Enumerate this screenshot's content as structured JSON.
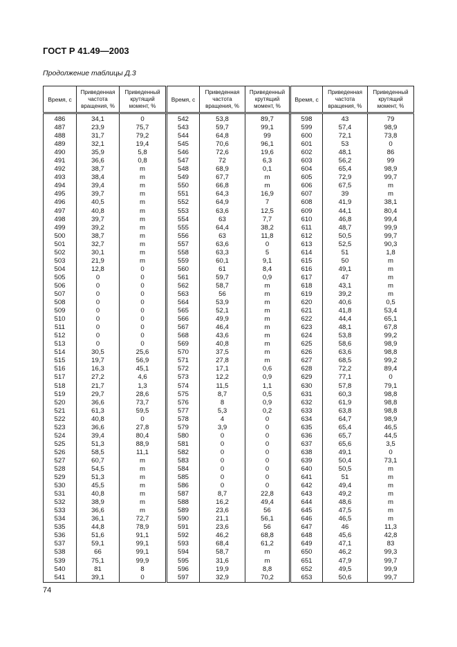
{
  "header": {
    "title": "ГОСТ Р 41.49—2003"
  },
  "caption": "Продолжение таблицы Д.3",
  "page_number": "74",
  "table": {
    "columns": [
      "Время, с",
      "Приведенная частота вращения, %",
      "Приведенный крутящий момент, %"
    ],
    "groups": [
      {
        "time": [
          "486",
          "487",
          "488",
          "489",
          "490",
          "491",
          "492",
          "493",
          "494",
          "495",
          "496",
          "497",
          "498",
          "499",
          "500",
          "501",
          "502",
          "503",
          "504",
          "505",
          "506",
          "507",
          "508",
          "509",
          "510",
          "511",
          "512",
          "513",
          "514",
          "515",
          "516",
          "517",
          "518",
          "519",
          "520",
          "521",
          "522",
          "523",
          "524",
          "525",
          "526",
          "527",
          "528",
          "529",
          "530",
          "531",
          "532",
          "533",
          "534",
          "535",
          "536",
          "537",
          "538",
          "539",
          "540",
          "541"
        ],
        "speed": [
          "34,1",
          "23,9",
          "31,7",
          "32,1",
          "35,9",
          "36,6",
          "38,7",
          "38,4",
          "39,4",
          "39,7",
          "40,5",
          "40,8",
          "39,7",
          "39,2",
          "38,7",
          "32,7",
          "30,1",
          "21,9",
          "12,8",
          "0",
          "0",
          "0",
          "0",
          "0",
          "0",
          "0",
          "0",
          "0",
          "30,5",
          "19,7",
          "16,3",
          "27,2",
          "21,7",
          "29,7",
          "36,6",
          "61,3",
          "40,8",
          "36,6",
          "39,4",
          "51,3",
          "58,5",
          "60,7",
          "54,5",
          "51,3",
          "45,5",
          "40,8",
          "38,9",
          "36,6",
          "36,1",
          "44,8",
          "51,6",
          "59,1",
          "66",
          "75,1",
          "81",
          "39,1"
        ],
        "torque": [
          "0",
          "75,7",
          "79,2",
          "19,4",
          "5,8",
          "0,8",
          "m",
          "m",
          "m",
          "m",
          "m",
          "m",
          "m",
          "m",
          "m",
          "m",
          "m",
          "m",
          "0",
          "0",
          "0",
          "0",
          "0",
          "0",
          "0",
          "0",
          "0",
          "0",
          "25,6",
          "56,9",
          "45,1",
          "4,6",
          "1,3",
          "28,6",
          "73,7",
          "59,5",
          "0",
          "27,8",
          "80,4",
          "88,9",
          "11,1",
          "m",
          "m",
          "m",
          "m",
          "m",
          "m",
          "m",
          "72,7",
          "78,9",
          "91,1",
          "99,1",
          "99,1",
          "99,9",
          "8",
          "0"
        ]
      },
      {
        "time": [
          "542",
          "543",
          "544",
          "545",
          "546",
          "547",
          "548",
          "549",
          "550",
          "551",
          "552",
          "553",
          "554",
          "555",
          "556",
          "557",
          "558",
          "559",
          "560",
          "561",
          "562",
          "563",
          "564",
          "565",
          "566",
          "567",
          "568",
          "569",
          "570",
          "571",
          "572",
          "573",
          "574",
          "575",
          "576",
          "577",
          "578",
          "579",
          "580",
          "581",
          "582",
          "583",
          "584",
          "585",
          "586",
          "587",
          "588",
          "589",
          "590",
          "591",
          "592",
          "593",
          "594",
          "595",
          "596",
          "597"
        ],
        "speed": [
          "53,8",
          "59,7",
          "64,8",
          "70,6",
          "72,6",
          "72",
          "68,9",
          "67,7",
          "66,8",
          "64,3",
          "64,9",
          "63,6",
          "63",
          "64,4",
          "63",
          "63,6",
          "63,3",
          "60,1",
          "61",
          "59,7",
          "58,7",
          "56",
          "53,9",
          "52,1",
          "49,9",
          "46,4",
          "43,6",
          "40,8",
          "37,5",
          "27,8",
          "17,1",
          "12,2",
          "11,5",
          "8,7",
          "8",
          "5,3",
          "4",
          "3,9",
          "0",
          "0",
          "0",
          "0",
          "0",
          "0",
          "0",
          "8,7",
          "16,2",
          "23,6",
          "21,1",
          "23,6",
          "46,2",
          "68,4",
          "58,7",
          "31,6",
          "19,9",
          "32,9"
        ],
        "torque": [
          "89,7",
          "99,1",
          "99",
          "96,1",
          "19,6",
          "6,3",
          "0,1",
          "m",
          "m",
          "16,9",
          "7",
          "12,5",
          "7,7",
          "38,2",
          "11,8",
          "0",
          "5",
          "9,1",
          "8,4",
          "0,9",
          "m",
          "m",
          "m",
          "m",
          "m",
          "m",
          "m",
          "m",
          "m",
          "m",
          "0,6",
          "0,9",
          "1,1",
          "0,5",
          "0,9",
          "0,2",
          "0",
          "0",
          "0",
          "0",
          "0",
          "0",
          "0",
          "0",
          "0",
          "22,8",
          "49,4",
          "56",
          "56,1",
          "56",
          "68,8",
          "61,2",
          "m",
          "m",
          "8,8",
          "70,2"
        ]
      },
      {
        "time": [
          "598",
          "599",
          "600",
          "601",
          "602",
          "603",
          "604",
          "605",
          "606",
          "607",
          "608",
          "609",
          "610",
          "611",
          "612",
          "613",
          "614",
          "615",
          "616",
          "617",
          "618",
          "619",
          "620",
          "621",
          "622",
          "623",
          "624",
          "625",
          "626",
          "627",
          "628",
          "629",
          "630",
          "631",
          "632",
          "633",
          "634",
          "635",
          "636",
          "637",
          "638",
          "639",
          "640",
          "641",
          "642",
          "643",
          "644",
          "645",
          "646",
          "647",
          "648",
          "649",
          "650",
          "651",
          "652",
          "653"
        ],
        "speed": [
          "43",
          "57,4",
          "72,1",
          "53",
          "48,1",
          "56,2",
          "65,4",
          "72,9",
          "67,5",
          "39",
          "41,9",
          "44,1",
          "46,8",
          "48,7",
          "50,5",
          "52,5",
          "51",
          "50",
          "49,1",
          "47",
          "43,1",
          "39,2",
          "40,6",
          "41,8",
          "44,4",
          "48,1",
          "53,8",
          "58,6",
          "63,6",
          "68,5",
          "72,2",
          "77,1",
          "57,8",
          "60,3",
          "61,9",
          "63,8",
          "64,7",
          "65,4",
          "65,7",
          "65,6",
          "49,1",
          "50,4",
          "50,5",
          "51",
          "49,4",
          "49,2",
          "48,6",
          "47,5",
          "46,5",
          "46",
          "45,6",
          "47,1",
          "46,2",
          "47,9",
          "49,5",
          "50,6"
        ],
        "torque": [
          "79",
          "98,9",
          "73,8",
          "0",
          "86",
          "99",
          "98,9",
          "99,7",
          "m",
          "m",
          "38,1",
          "80,4",
          "99,4",
          "99,9",
          "99,7",
          "90,3",
          "1,8",
          "m",
          "m",
          "m",
          "m",
          "m",
          "0,5",
          "53,4",
          "65,1",
          "67,8",
          "99,2",
          "98,9",
          "98,8",
          "99,2",
          "89,4",
          "0",
          "79,1",
          "98,8",
          "98,8",
          "98,8",
          "98,9",
          "46,5",
          "44,5",
          "3,5",
          "0",
          "73,1",
          "m",
          "m",
          "m",
          "m",
          "m",
          "m",
          "m",
          "11,3",
          "42,8",
          "83",
          "99,3",
          "99,7",
          "99,9",
          "99,7"
        ]
      }
    ]
  }
}
